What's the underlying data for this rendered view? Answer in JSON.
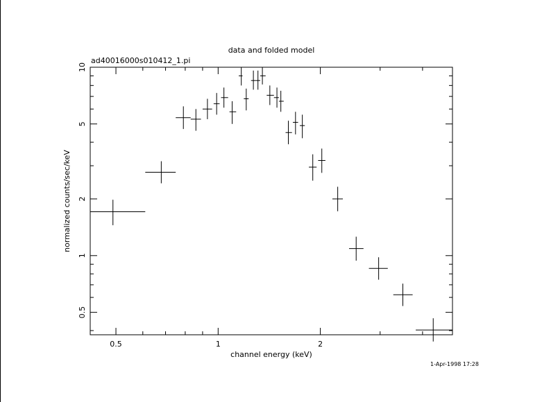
{
  "chart_data": {
    "type": "scatter",
    "title": "data and folded model",
    "subtitle": "ad40016000s010412_1.pi",
    "xlabel": "channel energy (keV)",
    "ylabel": "normalized counts/sec/keV",
    "timestamp": "1-Apr-1998 17:28",
    "x_scale": "log",
    "y_scale": "log",
    "xlim": [
      0.42,
      4.9
    ],
    "ylim": [
      0.38,
      10
    ],
    "x_ticks": [
      {
        "value": 0.5,
        "label": "0.5"
      },
      {
        "value": 1,
        "label": "1"
      },
      {
        "value": 2,
        "label": "2"
      }
    ],
    "y_ticks": [
      {
        "value": 0.5,
        "label": "0.5"
      },
      {
        "value": 1,
        "label": "1"
      },
      {
        "value": 2,
        "label": "2"
      },
      {
        "value": 5,
        "label": "5"
      },
      {
        "value": 10,
        "label": "10"
      }
    ],
    "grid": false,
    "points": [
      {
        "x": 0.49,
        "xlo": 0.42,
        "xhi": 0.61,
        "y": 1.71,
        "ylo": 1.45,
        "yhi": 1.98
      },
      {
        "x": 0.68,
        "xlo": 0.61,
        "xhi": 0.75,
        "y": 2.77,
        "ylo": 2.42,
        "yhi": 3.17
      },
      {
        "x": 0.79,
        "xlo": 0.75,
        "xhi": 0.83,
        "y": 5.4,
        "ylo": 4.7,
        "yhi": 6.2
      },
      {
        "x": 0.86,
        "xlo": 0.83,
        "xhi": 0.89,
        "y": 5.3,
        "ylo": 4.6,
        "yhi": 6.0
      },
      {
        "x": 0.93,
        "xlo": 0.9,
        "xhi": 0.96,
        "y": 6.0,
        "ylo": 5.3,
        "yhi": 6.8
      },
      {
        "x": 0.99,
        "xlo": 0.97,
        "xhi": 1.01,
        "y": 6.4,
        "ylo": 5.6,
        "yhi": 7.3
      },
      {
        "x": 1.04,
        "xlo": 1.02,
        "xhi": 1.07,
        "y": 6.9,
        "ylo": 6.1,
        "yhi": 7.8
      },
      {
        "x": 1.1,
        "xlo": 1.08,
        "xhi": 1.13,
        "y": 5.8,
        "ylo": 5.0,
        "yhi": 6.6
      },
      {
        "x": 1.17,
        "xlo": 1.15,
        "xhi": 1.18,
        "y": 9.0,
        "ylo": 8.0,
        "yhi": 10.0
      },
      {
        "x": 1.21,
        "xlo": 1.19,
        "xhi": 1.23,
        "y": 6.8,
        "ylo": 5.9,
        "yhi": 7.7
      },
      {
        "x": 1.27,
        "xlo": 1.25,
        "xhi": 1.29,
        "y": 8.5,
        "ylo": 7.6,
        "yhi": 9.6
      },
      {
        "x": 1.31,
        "xlo": 1.29,
        "xhi": 1.33,
        "y": 8.5,
        "ylo": 7.6,
        "yhi": 9.6
      },
      {
        "x": 1.35,
        "xlo": 1.33,
        "xhi": 1.38,
        "y": 9.0,
        "ylo": 8.1,
        "yhi": 10.0
      },
      {
        "x": 1.42,
        "xlo": 1.39,
        "xhi": 1.46,
        "y": 7.1,
        "ylo": 6.3,
        "yhi": 8.0
      },
      {
        "x": 1.49,
        "xlo": 1.46,
        "xhi": 1.51,
        "y": 6.9,
        "ylo": 6.1,
        "yhi": 7.8
      },
      {
        "x": 1.53,
        "xlo": 1.51,
        "xhi": 1.56,
        "y": 6.6,
        "ylo": 5.8,
        "yhi": 7.5
      },
      {
        "x": 1.61,
        "xlo": 1.58,
        "xhi": 1.65,
        "y": 4.5,
        "ylo": 3.9,
        "yhi": 5.2
      },
      {
        "x": 1.69,
        "xlo": 1.66,
        "xhi": 1.72,
        "y": 5.1,
        "ylo": 4.4,
        "yhi": 5.8
      },
      {
        "x": 1.77,
        "xlo": 1.74,
        "xhi": 1.8,
        "y": 4.9,
        "ylo": 4.2,
        "yhi": 5.6
      },
      {
        "x": 1.9,
        "xlo": 1.85,
        "xhi": 1.95,
        "y": 2.95,
        "ylo": 2.5,
        "yhi": 3.45
      },
      {
        "x": 2.02,
        "xlo": 1.97,
        "xhi": 2.07,
        "y": 3.2,
        "ylo": 2.75,
        "yhi": 3.7
      },
      {
        "x": 2.25,
        "xlo": 2.17,
        "xhi": 2.33,
        "y": 2.0,
        "ylo": 1.72,
        "yhi": 2.32
      },
      {
        "x": 2.55,
        "xlo": 2.43,
        "xhi": 2.68,
        "y": 1.09,
        "ylo": 0.94,
        "yhi": 1.26
      },
      {
        "x": 2.97,
        "xlo": 2.78,
        "xhi": 3.16,
        "y": 0.855,
        "ylo": 0.745,
        "yhi": 0.98
      },
      {
        "x": 3.5,
        "xlo": 3.28,
        "xhi": 3.74,
        "y": 0.62,
        "ylo": 0.54,
        "yhi": 0.71
      },
      {
        "x": 4.3,
        "xlo": 3.82,
        "xhi": 4.9,
        "y": 0.403,
        "ylo": 0.35,
        "yhi": 0.465
      }
    ]
  }
}
